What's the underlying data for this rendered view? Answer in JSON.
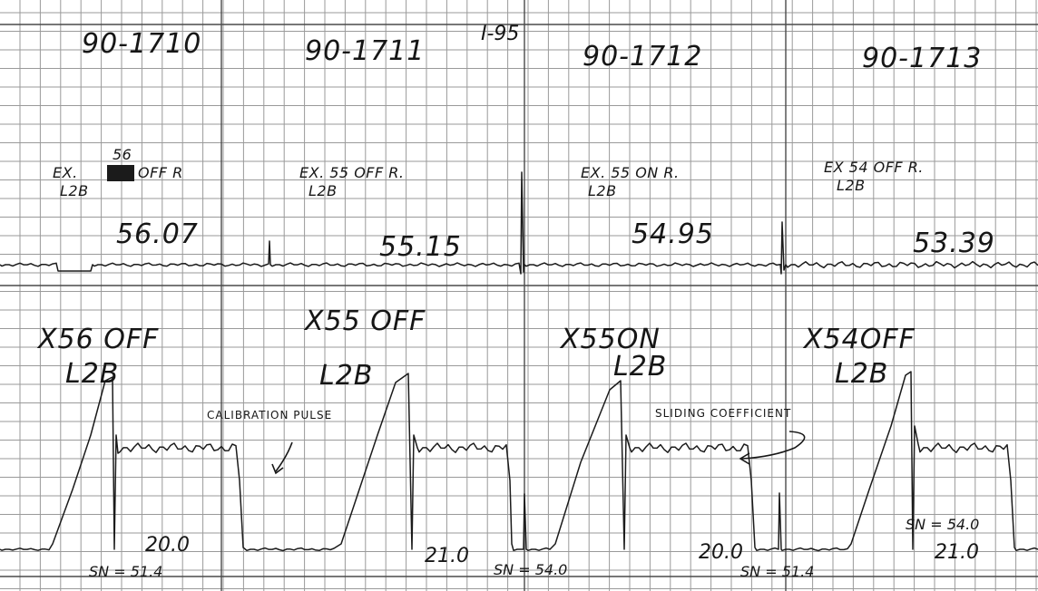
{
  "route": "I-95",
  "sections": [
    {
      "test_id": "90-1710",
      "label_line1": "EX.",
      "label_crossed": "56",
      "label_line2": "OFF R",
      "lane": "L2B",
      "friction_reading": "56.07",
      "lower_label": "X56 OFF",
      "lower_lane": "L2B",
      "speed": "20.0",
      "sn": "SN = 51.4"
    },
    {
      "test_id": "90-1711",
      "label_line1": "EX. 55 OFF R.",
      "lane": "L2B",
      "friction_reading": "55.15",
      "lower_label": "X55 OFF",
      "lower_lane": "L2B",
      "speed": "21.0",
      "sn": "SN = 54.0"
    },
    {
      "test_id": "90-1712",
      "label_line1": "EX. 55 ON R.",
      "lane": "L2B",
      "friction_reading": "54.95",
      "lower_label": "X55ON",
      "lower_lane": "L2B",
      "speed": "20.0",
      "sn": "SN = 51.4"
    },
    {
      "test_id": "90-1713",
      "label_line1": "EX 54 OFF R.",
      "lane": "L2B",
      "friction_reading": "53.39",
      "lower_label": "X54OFF",
      "lower_lane": "L2B",
      "speed": "21.0",
      "sn": "SN = 54.0"
    }
  ],
  "annotations": {
    "calibration": "CALIBRATION PULSE",
    "sliding": "SLIDING COEFFICIENT"
  }
}
